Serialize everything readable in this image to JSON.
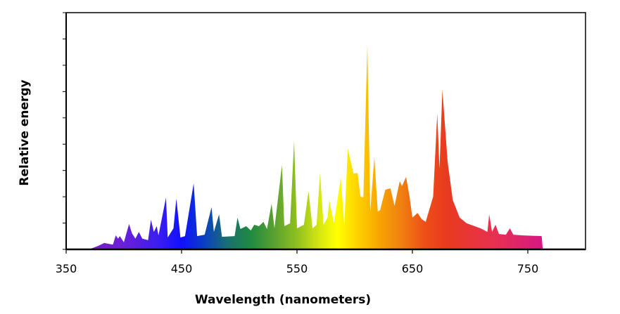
{
  "chart_data": {
    "type": "area",
    "title": "",
    "xlabel": "Wavelength (nanometers)",
    "ylabel": "Relative energy",
    "xlim": [
      350,
      800
    ],
    "ylim": [
      0,
      100
    ],
    "xticks": [
      350,
      450,
      550,
      650,
      750
    ],
    "xtick_labels": [
      "350",
      "450",
      "550",
      "650",
      "750"
    ],
    "yticks_count": 10,
    "ytick_labels_shown": false,
    "grid": false,
    "legend": "none",
    "fill": "visible-spectrum color gradient",
    "gradient_stops": [
      {
        "nm": 370,
        "color": "#7a1fc0"
      },
      {
        "nm": 400,
        "color": "#6a1fd8"
      },
      {
        "nm": 430,
        "color": "#3a1ef0"
      },
      {
        "nm": 450,
        "color": "#1010ff"
      },
      {
        "nm": 470,
        "color": "#0a40c0"
      },
      {
        "nm": 490,
        "color": "#1a7070"
      },
      {
        "nm": 510,
        "color": "#1f8a40"
      },
      {
        "nm": 530,
        "color": "#5aa030"
      },
      {
        "nm": 550,
        "color": "#90c020"
      },
      {
        "nm": 570,
        "color": "#d8e810"
      },
      {
        "nm": 585,
        "color": "#ffff00"
      },
      {
        "nm": 600,
        "color": "#ffd800"
      },
      {
        "nm": 620,
        "color": "#f8a800"
      },
      {
        "nm": 640,
        "color": "#f08010"
      },
      {
        "nm": 660,
        "color": "#ee5018"
      },
      {
        "nm": 680,
        "color": "#e83a20"
      },
      {
        "nm": 720,
        "color": "#e83050"
      },
      {
        "nm": 760,
        "color": "#d81a80"
      }
    ],
    "points": [
      [
        370,
        0
      ],
      [
        378,
        1.5
      ],
      [
        383,
        2.7
      ],
      [
        390.5,
        2
      ],
      [
        393,
        5.9
      ],
      [
        395,
        4.5
      ],
      [
        396.5,
        5.6
      ],
      [
        400,
        3
      ],
      [
        404.5,
        10.7
      ],
      [
        407,
        6.8
      ],
      [
        410,
        4.5
      ],
      [
        413,
        7.4
      ],
      [
        416,
        4.5
      ],
      [
        421,
        3.9
      ],
      [
        423.5,
        12.5
      ],
      [
        426,
        7.4
      ],
      [
        428.5,
        9.8
      ],
      [
        430,
        5.9
      ],
      [
        436.5,
        21.9
      ],
      [
        438,
        5
      ],
      [
        443,
        8.9
      ],
      [
        445.5,
        21.4
      ],
      [
        449,
        5
      ],
      [
        453,
        5.6
      ],
      [
        460.5,
        27.9
      ],
      [
        463.5,
        5.6
      ],
      [
        470,
        6.2
      ],
      [
        476,
        17.8
      ],
      [
        478,
        7.4
      ],
      [
        482.5,
        14.8
      ],
      [
        485,
        5.3
      ],
      [
        496,
        5.6
      ],
      [
        498.5,
        13.4
      ],
      [
        501,
        8.6
      ],
      [
        506,
        9.8
      ],
      [
        510,
        8
      ],
      [
        513,
        10.4
      ],
      [
        517,
        9.8
      ],
      [
        521,
        11.6
      ],
      [
        524,
        8.6
      ],
      [
        528,
        19.3
      ],
      [
        530.5,
        8.9
      ],
      [
        537,
        35.6
      ],
      [
        539,
        9.8
      ],
      [
        544,
        11
      ],
      [
        547.5,
        45.7
      ],
      [
        550,
        8.9
      ],
      [
        556,
        10.4
      ],
      [
        560,
        24.6
      ],
      [
        563.5,
        8.9
      ],
      [
        567,
        10.4
      ],
      [
        570,
        32.3
      ],
      [
        573,
        10.4
      ],
      [
        576.5,
        13.4
      ],
      [
        578,
        20.8
      ],
      [
        582,
        11
      ],
      [
        588,
        30.3
      ],
      [
        591,
        10.4
      ],
      [
        594,
        42.4
      ],
      [
        599,
        32
      ],
      [
        602.5,
        32.3
      ],
      [
        605,
        22.3
      ],
      [
        607.5,
        22
      ],
      [
        611,
        86.4
      ],
      [
        613.5,
        16
      ],
      [
        617,
        38.9
      ],
      [
        620,
        16
      ],
      [
        622,
        16.6
      ],
      [
        626.5,
        25.2
      ],
      [
        631,
        25.8
      ],
      [
        634.5,
        18.4
      ],
      [
        639,
        28.8
      ],
      [
        641,
        26.7
      ],
      [
        644.5,
        30.6
      ],
      [
        647.5,
        22.3
      ],
      [
        650,
        13.4
      ],
      [
        654.5,
        15.4
      ],
      [
        658,
        12.8
      ],
      [
        661.5,
        11.6
      ],
      [
        668,
        22.3
      ],
      [
        671.5,
        57.3
      ],
      [
        673.5,
        34.1
      ],
      [
        676,
        67.4
      ],
      [
        680.5,
        37.1
      ],
      [
        685,
        20.8
      ],
      [
        691,
        13.4
      ],
      [
        697,
        11
      ],
      [
        709,
        8.9
      ],
      [
        715,
        7.4
      ],
      [
        716.5,
        14.8
      ],
      [
        719,
        7.4
      ],
      [
        722,
        10.4
      ],
      [
        725,
        6.5
      ],
      [
        731,
        6.2
      ],
      [
        734.5,
        8.9
      ],
      [
        737.5,
        6.2
      ],
      [
        746,
        5.9
      ],
      [
        762,
        5.6
      ],
      [
        763,
        0
      ]
    ]
  }
}
